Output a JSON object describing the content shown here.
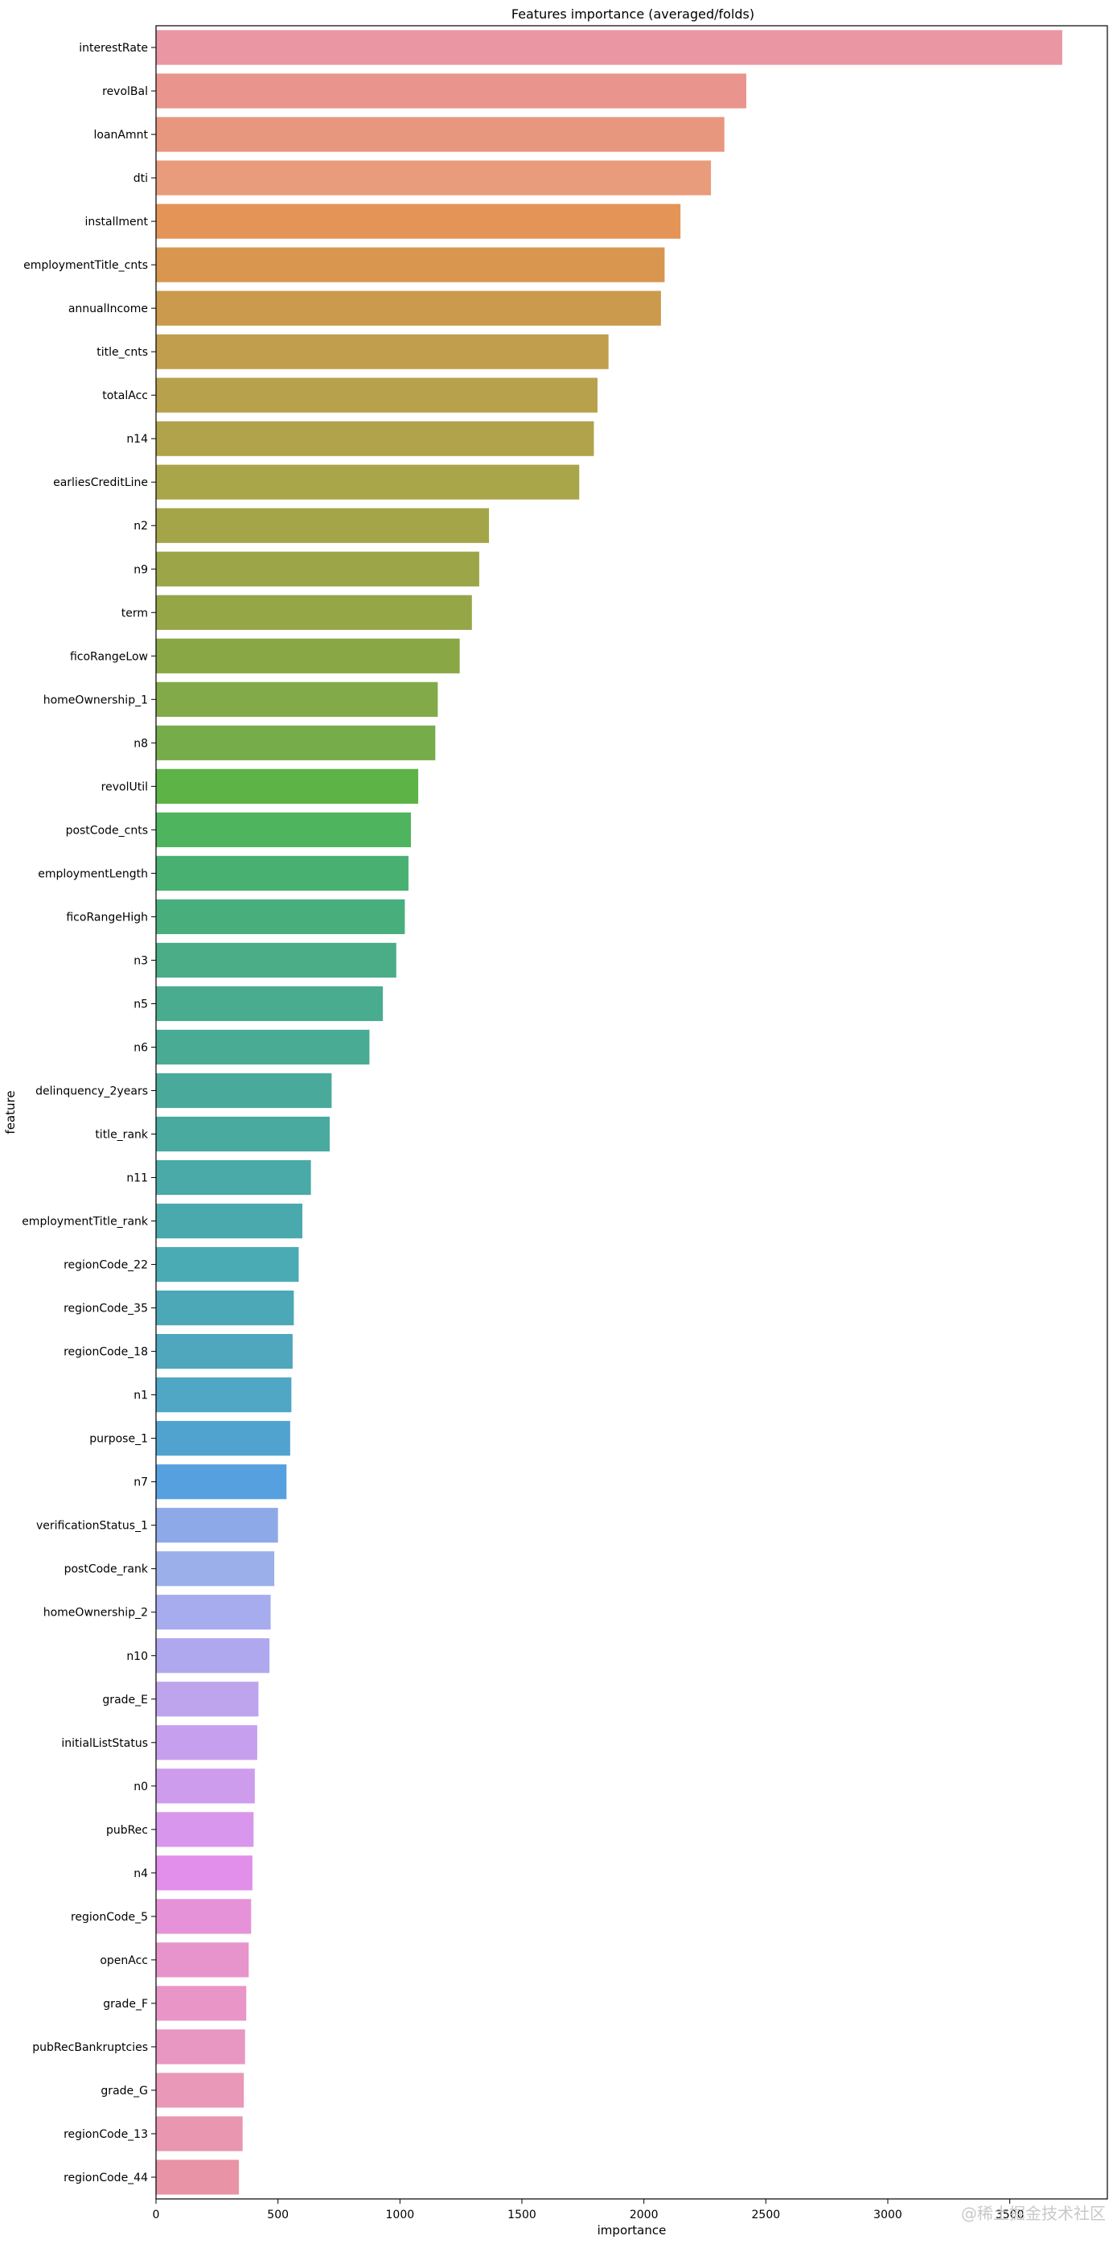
{
  "chart_data": {
    "type": "bar",
    "orientation": "horizontal",
    "title": "Features importance (averaged/folds)",
    "xlabel": "importance",
    "ylabel": "feature",
    "xlim": [
      0,
      3900
    ],
    "xticks": [
      0,
      500,
      1000,
      1500,
      2000,
      2500,
      3000,
      3500
    ],
    "grid": false,
    "categories": [
      "interestRate",
      "revolBal",
      "loanAmnt",
      "dti",
      "installment",
      "employmentTitle_cnts",
      "annualIncome",
      "title_cnts",
      "totalAcc",
      "n14",
      "earliesCreditLine",
      "n2",
      "n9",
      "term",
      "ficoRangeLow",
      "homeOwnership_1",
      "n8",
      "revolUtil",
      "postCode_cnts",
      "employmentLength",
      "ficoRangeHigh",
      "n3",
      "n5",
      "n6",
      "delinquency_2years",
      "title_rank",
      "n11",
      "employmentTitle_rank",
      "regionCode_22",
      "regionCode_35",
      "regionCode_18",
      "n1",
      "purpose_1",
      "n7",
      "verificationStatus_1",
      "postCode_rank",
      "homeOwnership_2",
      "n10",
      "grade_E",
      "initialListStatus",
      "n0",
      "pubRec",
      "n4",
      "regionCode_5",
      "openAcc",
      "grade_F",
      "pubRecBankruptcies",
      "grade_G",
      "regionCode_13",
      "regionCode_44"
    ],
    "values": [
      3715,
      2420,
      2330,
      2275,
      2150,
      2085,
      2070,
      1855,
      1810,
      1795,
      1735,
      1365,
      1325,
      1295,
      1245,
      1155,
      1145,
      1075,
      1045,
      1035,
      1020,
      985,
      930,
      875,
      720,
      712,
      635,
      600,
      585,
      565,
      560,
      555,
      550,
      535,
      500,
      485,
      470,
      465,
      420,
      415,
      405,
      400,
      395,
      390,
      380,
      370,
      365,
      360,
      355,
      340
    ],
    "colors": [
      "#ea96a3",
      "#e9958e",
      "#e8977f",
      "#e99c7b",
      "#e39456",
      "#d9964f",
      "#cc9a4c",
      "#c09e4d",
      "#b8a14c",
      "#b0a34b",
      "#a9a549",
      "#a4a548",
      "#9ca547",
      "#94a646",
      "#89a845",
      "#82aa48",
      "#77ac4b",
      "#5db346",
      "#4eb45e",
      "#48b172",
      "#48af7c",
      "#4aad87",
      "#4aac8f",
      "#4aab95",
      "#49aa9b",
      "#49aaa0",
      "#4aaaa7",
      "#4aa9ad",
      "#4babb5",
      "#4ca8b6",
      "#4ea7bd",
      "#4fa6c5",
      "#51a3cf",
      "#56a0e0",
      "#8ea9e7",
      "#9bb0ea",
      "#a6acee",
      "#afa8ee",
      "#bea4ed",
      "#c6a0ee",
      "#ce9ced",
      "#d896ed",
      "#e28eeb",
      "#e692d8",
      "#e894cc",
      "#e995c8",
      "#e897c3",
      "#e998b8",
      "#e996b0",
      "#e994a6"
    ]
  },
  "watermark": "@稀土掘金技术社区"
}
